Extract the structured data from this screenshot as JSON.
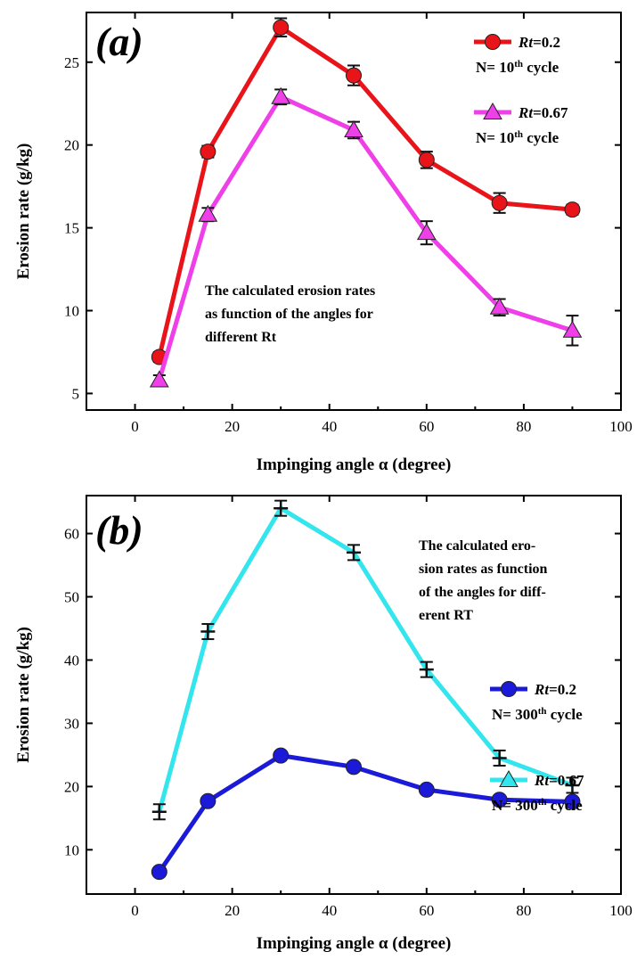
{
  "chart_data": [
    {
      "type": "line",
      "panel_label": "(a)",
      "xlabel": "Impinging angle α (degree)",
      "ylabel": "Erosion rate (g/kg)",
      "xlim": [
        -10,
        100
      ],
      "ylim": [
        4,
        28
      ],
      "xticks": [
        0,
        20,
        40,
        60,
        80,
        100
      ],
      "yticks": [
        5,
        10,
        15,
        20,
        25
      ],
      "grid": false,
      "legend_position": "top-right",
      "annotation": [
        "The calculated erosion rates",
        "as function of the angles for",
        "different Rt"
      ],
      "series": [
        {
          "name": "Rt=0.2",
          "legend_main": "Rt",
          "legend_value": "=0.2",
          "legend_cycle_prefix": "N= 10",
          "legend_cycle_sup": "th",
          "legend_cycle_suffix": " cycle",
          "marker": "circle",
          "color": "#e8141a",
          "x": [
            5,
            15,
            30,
            45,
            60,
            75,
            90
          ],
          "y": [
            7.2,
            19.6,
            27.1,
            24.2,
            19.1,
            16.5,
            16.1
          ],
          "err": [
            0.3,
            0.35,
            0.55,
            0.6,
            0.5,
            0.6,
            0.3
          ]
        },
        {
          "name": "Rt=0.67",
          "legend_main": "Rt",
          "legend_value": "=0.67",
          "legend_cycle_prefix": "N= 10",
          "legend_cycle_sup": "th",
          "legend_cycle_suffix": " cycle",
          "marker": "triangle",
          "color": "#ee3fe8",
          "x": [
            5,
            15,
            30,
            45,
            60,
            75,
            90
          ],
          "y": [
            5.8,
            15.8,
            22.9,
            20.9,
            14.7,
            10.2,
            8.8
          ],
          "err": [
            0.3,
            0.4,
            0.45,
            0.5,
            0.7,
            0.5,
            0.9
          ]
        }
      ]
    },
    {
      "type": "line",
      "panel_label": "(b)",
      "xlabel": "Impinging angle α (degree)",
      "ylabel": "Erosion rate (g/kg)",
      "xlim": [
        -10,
        100
      ],
      "ylim": [
        3,
        66
      ],
      "xticks": [
        0,
        20,
        40,
        60,
        80,
        100
      ],
      "yticks": [
        10,
        20,
        30,
        40,
        50,
        60
      ],
      "grid": false,
      "legend_position": "bottom-right",
      "annotation": [
        "The calculated ero-",
        "sion rates as function",
        "of the angles for diff-",
        "erent RT"
      ],
      "series": [
        {
          "name": "Rt=0.2",
          "legend_main": "Rt",
          "legend_value": "=0.2",
          "legend_cycle_prefix": "N= 300",
          "legend_cycle_sup": "th",
          "legend_cycle_suffix": " cycle",
          "marker": "circle",
          "color": "#1a1ad8",
          "x": [
            5,
            15,
            30,
            45,
            60,
            75,
            90
          ],
          "y": [
            6.5,
            17.7,
            24.9,
            23.1,
            19.5,
            17.9,
            17.6
          ],
          "err": [
            0.4,
            0.5,
            0.6,
            0.5,
            0.5,
            0.5,
            0.5
          ]
        },
        {
          "name": "Rt=0.67",
          "legend_main": "Rt",
          "legend_value": "=0.67",
          "legend_cycle_prefix": "N= 300",
          "legend_cycle_sup": "th",
          "legend_cycle_suffix": " cycle",
          "marker": "cross",
          "color": "#33e5ec",
          "x": [
            5,
            15,
            30,
            45,
            60,
            75,
            90
          ],
          "y": [
            16.0,
            44.5,
            64.0,
            57.0,
            38.5,
            24.5,
            20.2
          ],
          "err": [
            1.2,
            1.2,
            1.2,
            1.2,
            1.2,
            1.2,
            1.2
          ]
        }
      ]
    }
  ]
}
